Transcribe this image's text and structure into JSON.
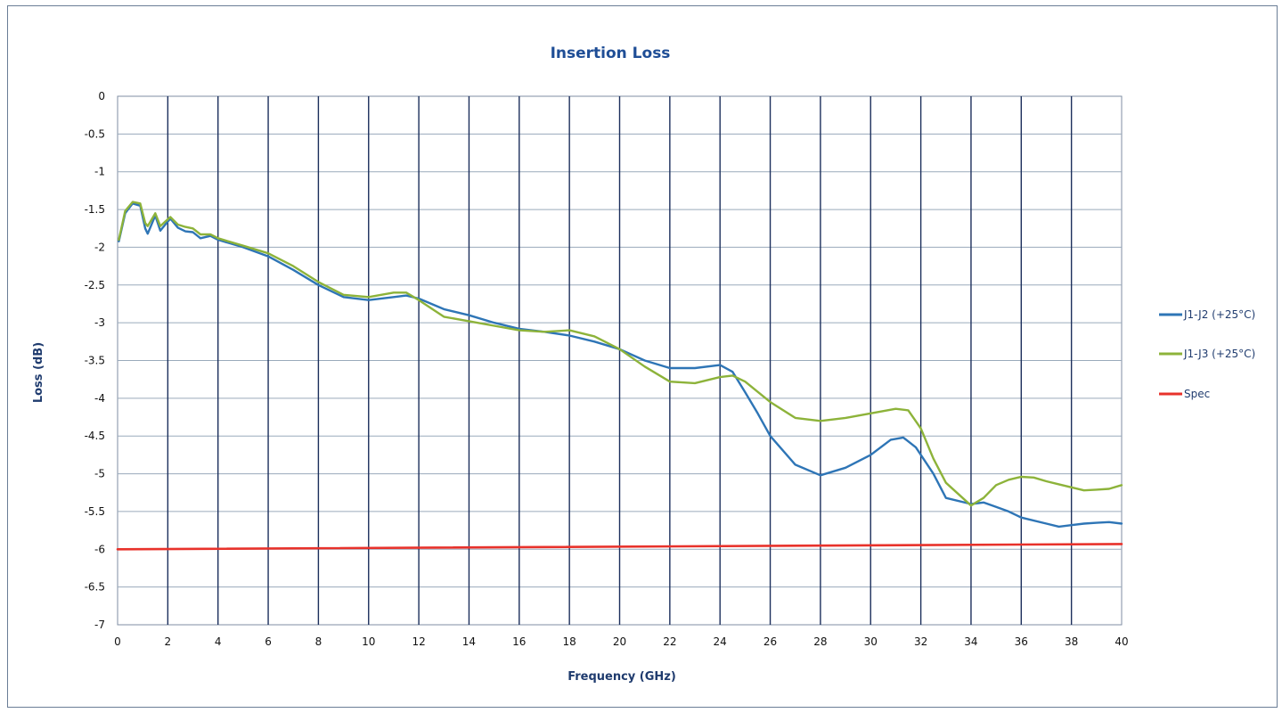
{
  "chart_data": {
    "type": "line",
    "title": "Insertion Loss",
    "xlabel": "Frequency (GHz)",
    "ylabel": "Loss (dB)",
    "xlim": [
      0,
      40
    ],
    "ylim": [
      -7,
      0
    ],
    "x_ticks": [
      "0",
      "2",
      "4",
      "6",
      "8",
      "10",
      "12",
      "14",
      "16",
      "18",
      "20",
      "22",
      "24",
      "26",
      "28",
      "30",
      "32",
      "34",
      "36",
      "38",
      "40"
    ],
    "y_ticks": [
      "0",
      "-0.5",
      "-1",
      "-1.5",
      "-2",
      "-2.5",
      "-3",
      "-3.5",
      "-4",
      "-4.5",
      "-5",
      "-5.5",
      "-6",
      "-6.5",
      "-7"
    ],
    "grid": true,
    "legend_position": "right",
    "series": [
      {
        "name": "J1-J2 (+25°C)",
        "color": "#2e75b6",
        "x": [
          0.05,
          0.3,
          0.6,
          0.9,
          1.1,
          1.2,
          1.5,
          1.7,
          1.9,
          2.1,
          2.4,
          2.7,
          3.0,
          3.3,
          3.7,
          4.0,
          5.0,
          6.0,
          7.0,
          8.0,
          9.0,
          10.0,
          11.0,
          11.5,
          12.0,
          13.0,
          14.0,
          15.0,
          16.0,
          17.0,
          18.0,
          19.0,
          20.0,
          21.0,
          22.0,
          23.0,
          24.0,
          24.5,
          25.0,
          25.5,
          26.0,
          27.0,
          28.0,
          29.0,
          30.0,
          30.8,
          31.3,
          31.8,
          32.5,
          33.0,
          34.0,
          34.5,
          35.0,
          35.5,
          36.0,
          37.0,
          37.5,
          38.0,
          38.5,
          39.0,
          39.5,
          40.0
        ],
        "y": [
          -1.92,
          -1.55,
          -1.42,
          -1.45,
          -1.75,
          -1.82,
          -1.58,
          -1.78,
          -1.7,
          -1.62,
          -1.74,
          -1.79,
          -1.8,
          -1.88,
          -1.85,
          -1.9,
          -2.0,
          -2.12,
          -2.3,
          -2.5,
          -2.66,
          -2.7,
          -2.66,
          -2.64,
          -2.68,
          -2.82,
          -2.9,
          -3.0,
          -3.08,
          -3.12,
          -3.17,
          -3.25,
          -3.35,
          -3.5,
          -3.6,
          -3.6,
          -3.56,
          -3.65,
          -3.92,
          -4.2,
          -4.5,
          -4.88,
          -5.02,
          -4.92,
          -4.75,
          -4.55,
          -4.52,
          -4.65,
          -5.0,
          -5.32,
          -5.4,
          -5.38,
          -5.44,
          -5.5,
          -5.58,
          -5.66,
          -5.7,
          -5.68,
          -5.66,
          -5.65,
          -5.64,
          -5.66
        ]
      },
      {
        "name": "J1-J3 (+25°C)",
        "color": "#8db33a",
        "x": [
          0.05,
          0.3,
          0.6,
          0.9,
          1.1,
          1.2,
          1.5,
          1.7,
          1.9,
          2.1,
          2.4,
          2.7,
          3.0,
          3.3,
          3.7,
          4.0,
          5.0,
          6.0,
          7.0,
          8.0,
          9.0,
          10.0,
          11.0,
          11.5,
          12.0,
          13.0,
          14.0,
          15.0,
          16.0,
          17.0,
          18.0,
          19.0,
          20.0,
          21.0,
          22.0,
          23.0,
          24.0,
          24.5,
          25.0,
          26.0,
          27.0,
          28.0,
          29.0,
          30.0,
          31.0,
          31.5,
          32.0,
          32.5,
          33.0,
          34.0,
          34.5,
          35.0,
          35.5,
          36.0,
          36.5,
          37.0,
          37.5,
          38.0,
          38.5,
          39.0,
          39.5,
          40.0
        ],
        "y": [
          -1.9,
          -1.52,
          -1.4,
          -1.42,
          -1.68,
          -1.72,
          -1.55,
          -1.72,
          -1.66,
          -1.6,
          -1.7,
          -1.73,
          -1.75,
          -1.83,
          -1.83,
          -1.88,
          -1.98,
          -2.08,
          -2.25,
          -2.46,
          -2.63,
          -2.66,
          -2.6,
          -2.6,
          -2.7,
          -2.92,
          -2.98,
          -3.04,
          -3.1,
          -3.12,
          -3.1,
          -3.18,
          -3.35,
          -3.58,
          -3.78,
          -3.8,
          -3.72,
          -3.7,
          -3.78,
          -4.05,
          -4.26,
          -4.3,
          -4.26,
          -4.2,
          -4.14,
          -4.16,
          -4.4,
          -4.8,
          -5.12,
          -5.42,
          -5.32,
          -5.15,
          -5.08,
          -5.04,
          -5.05,
          -5.1,
          -5.14,
          -5.18,
          -5.22,
          -5.21,
          -5.2,
          -5.15
        ]
      },
      {
        "name": "Spec",
        "color": "#e8322b",
        "x": [
          0,
          40
        ],
        "y": [
          -6.0,
          -5.93
        ]
      }
    ]
  }
}
